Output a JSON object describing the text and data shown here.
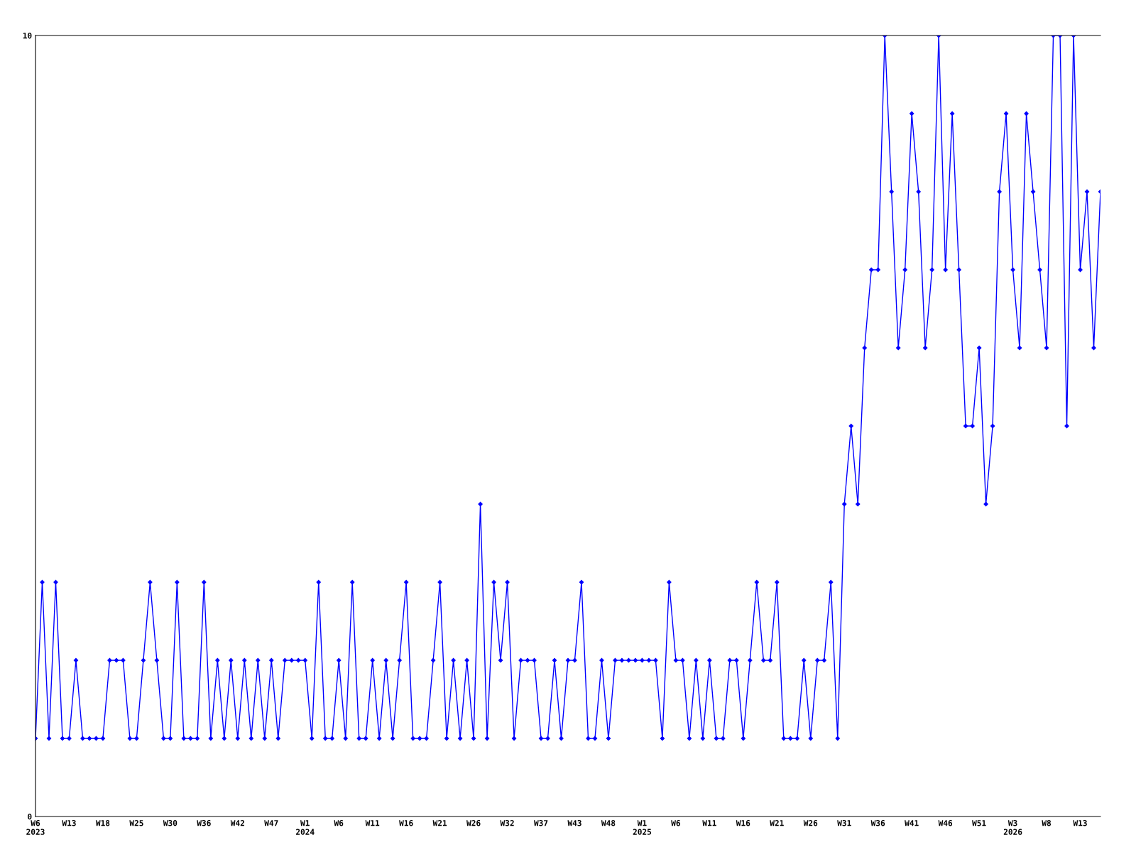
{
  "chart_data": {
    "type": "line",
    "categories": [
      "W6\n2023",
      null,
      null,
      null,
      null,
      "W13",
      null,
      null,
      null,
      null,
      "W18",
      null,
      null,
      null,
      null,
      "W25",
      null,
      null,
      null,
      null,
      "W30",
      null,
      null,
      null,
      null,
      "W36",
      null,
      null,
      null,
      null,
      "W42",
      null,
      null,
      null,
      null,
      "W47",
      null,
      null,
      null,
      null,
      "W1\n2024",
      null,
      null,
      null,
      null,
      "W6",
      null,
      null,
      null,
      null,
      "W11",
      null,
      null,
      null,
      null,
      "W16",
      null,
      null,
      null,
      null,
      "W21",
      null,
      null,
      null,
      null,
      "W26",
      null,
      null,
      null,
      null,
      "W32",
      null,
      null,
      null,
      null,
      "W37",
      null,
      null,
      null,
      null,
      "W43",
      null,
      null,
      null,
      null,
      "W48",
      null,
      null,
      null,
      null,
      "W1\n2025",
      null,
      null,
      null,
      null,
      "W6",
      null,
      null,
      null,
      null,
      "W11",
      null,
      null,
      null,
      null,
      "W16",
      null,
      null,
      null,
      null,
      "W21",
      null,
      null,
      null,
      null,
      "W26",
      null,
      null,
      null,
      null,
      "W31",
      null,
      null,
      null,
      null,
      "W36",
      null,
      null,
      null,
      null,
      "W41",
      null,
      null,
      null,
      null,
      "W46",
      null,
      null,
      null,
      null,
      "W51",
      null,
      null,
      null,
      null,
      "W3\n2026",
      null,
      null,
      null,
      null,
      "W8",
      null,
      null,
      null,
      null,
      "W13",
      null,
      null,
      null
    ],
    "series": [
      {
        "color": "#0000ff",
        "values": [
          1,
          3,
          1,
          3,
          1,
          1,
          2,
          1,
          1,
          1,
          1,
          2,
          2,
          2,
          1,
          1,
          2,
          3,
          2,
          1,
          1,
          3,
          1,
          1,
          1,
          3,
          1,
          2,
          1,
          2,
          1,
          2,
          1,
          2,
          1,
          2,
          1,
          2,
          2,
          2,
          2,
          1,
          3,
          1,
          1,
          2,
          1,
          3,
          1,
          1,
          2,
          1,
          2,
          1,
          2,
          3,
          1,
          1,
          1,
          2,
          3,
          1,
          2,
          1,
          2,
          1,
          4,
          1,
          3,
          2,
          3,
          1,
          2,
          2,
          2,
          1,
          1,
          2,
          1,
          2,
          2,
          3,
          1,
          1,
          2,
          1,
          2,
          2,
          2,
          2,
          2,
          2,
          2,
          1,
          3,
          2,
          2,
          1,
          2,
          1,
          2,
          1,
          1,
          2,
          2,
          1,
          2,
          3,
          2,
          2,
          3,
          1,
          1,
          1,
          2,
          1,
          2,
          2,
          3,
          1,
          4,
          5,
          4,
          6,
          7,
          7,
          10,
          8,
          6,
          7,
          9,
          8,
          6,
          7,
          10,
          7,
          9,
          7,
          5,
          5,
          6,
          4,
          5,
          8,
          9,
          7,
          6,
          9,
          8,
          7,
          6,
          10,
          10,
          5,
          10,
          7,
          8,
          6,
          8
        ]
      }
    ],
    "ylim": [
      0,
      10
    ],
    "yticks": [
      0,
      10
    ],
    "marker": "diamond",
    "line_style": "solid",
    "grid": false,
    "legend": false
  }
}
